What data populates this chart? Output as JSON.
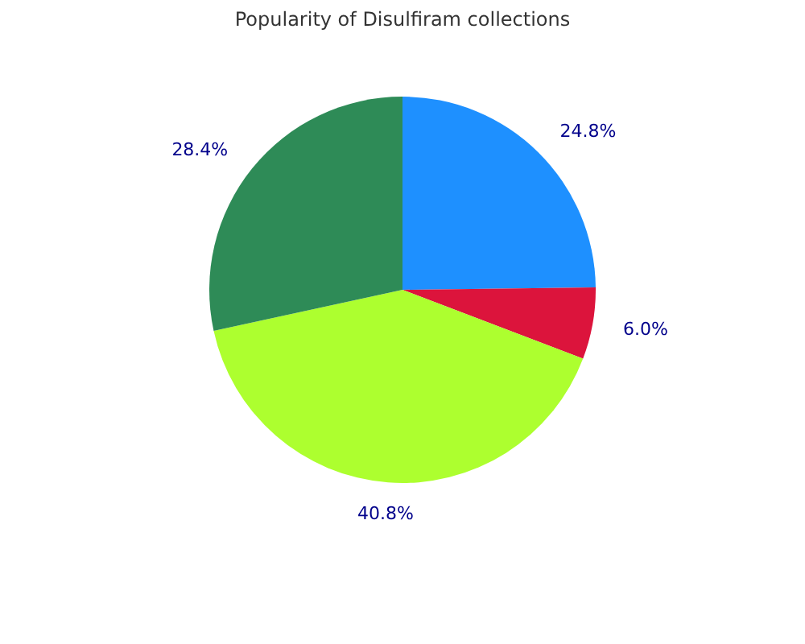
{
  "chart_data": {
    "type": "pie",
    "title": "Popularity of Disulfiram collections",
    "categories": [
      null,
      null,
      null,
      null
    ],
    "values": [
      24.8,
      6.0,
      40.8,
      28.4
    ],
    "colors": [
      "#1e90ff",
      "#dc143c",
      "#adff2f",
      "#2e8b57"
    ],
    "value_labels": [
      "24.8%",
      "6.0%",
      "40.8%",
      "28.4%"
    ]
  }
}
